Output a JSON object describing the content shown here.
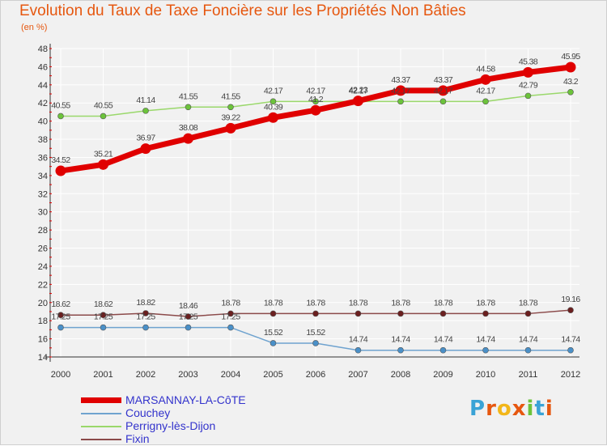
{
  "header": {
    "title": "Evolution du Taux de Taxe Foncière sur les Propriétés Non Bâties",
    "subtitle": "(en %)"
  },
  "brand": {
    "logo_text": "Proxiti",
    "logo_colors": [
      "#3aa3d6",
      "#e6570f",
      "#f2b619",
      "#e6570f",
      "#6cc33b",
      "#3aa3d6",
      "#e6570f"
    ]
  },
  "colors": {
    "background": "#f1f1f1",
    "grid": "#ffffff",
    "title": "#e6570f",
    "legend_text": "#3333cc"
  },
  "chart_data": {
    "type": "line",
    "title": "Evolution du Taux de Taxe Foncière sur les Propriétés Non Bâties",
    "ylabel": "(en %)",
    "xlabel": "",
    "x": [
      "2000",
      "2001",
      "2002",
      "2003",
      "2004",
      "2005",
      "2006",
      "2007",
      "2008",
      "2009",
      "2010",
      "2011",
      "2012"
    ],
    "ylim": [
      14,
      48
    ],
    "yticks": [
      14,
      16,
      18,
      20,
      22,
      24,
      26,
      28,
      30,
      32,
      34,
      36,
      38,
      40,
      42,
      44,
      46,
      48
    ],
    "grid": true,
    "legend_position": "bottom-left",
    "series": [
      {
        "name": "MARSANNAY-LA-CôTE",
        "color": "#e00000",
        "marker_color": "#e00000",
        "width": 7,
        "values": [
          34.52,
          35.21,
          36.97,
          38.08,
          39.22,
          40.39,
          41.2,
          42.23,
          43.37,
          43.37,
          44.58,
          45.38,
          45.95
        ],
        "labels": [
          "34.52",
          "35.21",
          "36.97",
          "38.08",
          "39.22",
          "40.39",
          "41.2",
          "42.23",
          "43.37",
          "43.37",
          "44.58",
          "45.38",
          "45.95"
        ]
      },
      {
        "name": "Couchey",
        "color": "#6fa3cf",
        "marker_color": "#4a90c8",
        "width": 1.5,
        "values": [
          17.25,
          17.25,
          17.25,
          17.25,
          17.25,
          15.52,
          15.52,
          14.74,
          14.74,
          14.74,
          14.74,
          14.74,
          14.74
        ],
        "labels": [
          "17.25",
          "17.25",
          "17.25",
          "17.25",
          "17.25",
          "15.52",
          "15.52",
          "14.74",
          "14.74",
          "14.74",
          "14.74",
          "14.74",
          "14.74"
        ]
      },
      {
        "name": "Perrigny-lès-Dijon",
        "color": "#9ad86b",
        "marker_color": "#6cc33b",
        "width": 1.5,
        "values": [
          40.55,
          40.55,
          41.14,
          41.55,
          41.55,
          42.17,
          42.17,
          42.17,
          42.17,
          42.17,
          42.17,
          42.79,
          43.2
        ],
        "labels": [
          "40.55",
          "40.55",
          "41.14",
          "41.55",
          "41.55",
          "42.17",
          "42.17",
          "42.17",
          "42.17",
          "42.17",
          "42.17",
          "42.79",
          "43.2"
        ]
      },
      {
        "name": "Fixin",
        "color": "#8b4a4a",
        "marker_color": "#6b1f1f",
        "width": 1.5,
        "values": [
          18.62,
          18.62,
          18.82,
          18.46,
          18.78,
          18.78,
          18.78,
          18.78,
          18.78,
          18.78,
          18.78,
          18.78,
          19.16
        ],
        "labels": [
          "18.62",
          "18.62",
          "18.82",
          "18.46",
          "18.78",
          "18.78",
          "18.78",
          "18.78",
          "18.78",
          "18.78",
          "18.78",
          "18.78",
          "19.16"
        ]
      }
    ]
  }
}
